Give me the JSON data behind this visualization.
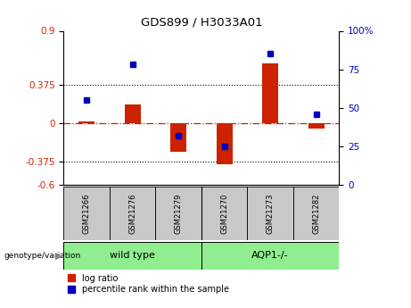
{
  "title": "GDS899 / H3033A01",
  "samples": [
    "GSM21266",
    "GSM21276",
    "GSM21279",
    "GSM21270",
    "GSM21273",
    "GSM21282"
  ],
  "log_ratios": [
    0.02,
    0.18,
    -0.28,
    -0.4,
    0.58,
    -0.05
  ],
  "percentile_ranks": [
    55,
    78,
    32,
    25,
    85,
    46
  ],
  "groups": [
    {
      "label": "wild type",
      "color": "#90EE90"
    },
    {
      "label": "AQP1-/-",
      "color": "#90EE90"
    }
  ],
  "group_boundary": 2.5,
  "ylim_left": [
    -0.6,
    0.9
  ],
  "ylim_right": [
    0,
    100
  ],
  "yticks_left": [
    -0.6,
    -0.375,
    0,
    0.375,
    0.9
  ],
  "yticks_right": [
    0,
    25,
    50,
    75,
    100
  ],
  "hlines": [
    0.375,
    -0.375
  ],
  "bar_color": "#CC2200",
  "dot_color": "#0000BB",
  "background_color": "#ffffff",
  "genotype_label": "genotype/variation",
  "legend_log_ratio": "log ratio",
  "legend_percentile": "percentile rank within the sample",
  "bar_width": 0.35
}
